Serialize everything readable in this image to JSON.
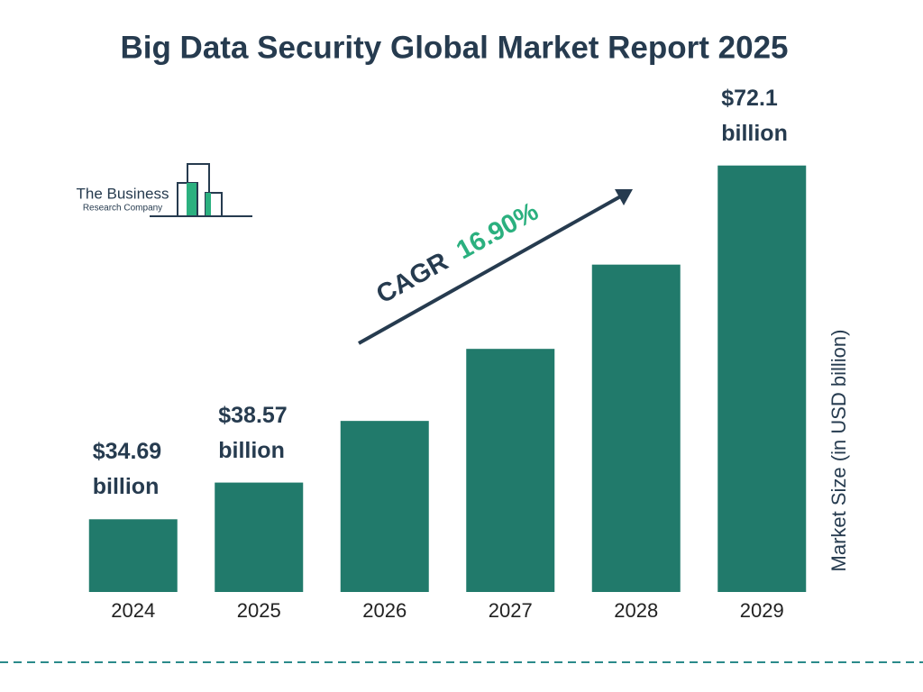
{
  "chart_data": {
    "type": "bar",
    "title": "Big Data Security Global Market Report 2025",
    "categories": [
      "2024",
      "2025",
      "2026",
      "2027",
      "2028",
      "2029"
    ],
    "values": [
      34.69,
      38.57,
      45.09,
      52.71,
      61.62,
      72.1
    ],
    "value_labels": [
      "$34.69 billion",
      "$38.57 billion",
      null,
      null,
      null,
      "$72.1 billion"
    ],
    "color": "#217a6b",
    "ylim": [
      27,
      73.5
    ],
    "y_label": "Market Size (in USD billion)",
    "cagr_label": "CAGR",
    "cagr_value": "16.90%",
    "logo": {
      "line1": "The Business",
      "line2": "Research Company"
    }
  }
}
